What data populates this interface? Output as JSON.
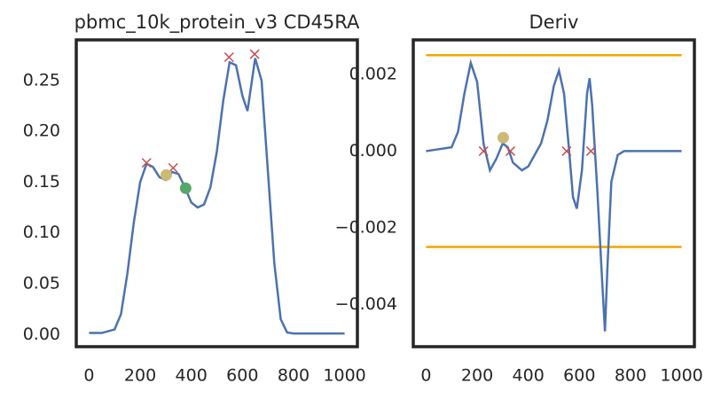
{
  "chart_data": [
    {
      "type": "line",
      "title": "pbmc_10k_protein_v3 CD45RA",
      "xlim": [
        -50,
        1050
      ],
      "ylim": [
        -0.012,
        0.29
      ],
      "xticks": [
        0,
        200,
        400,
        600,
        800,
        1000
      ],
      "yticks": [
        {
          "value": 0,
          "label": "0.00"
        },
        {
          "value": 0.05,
          "label": "0.05"
        },
        {
          "value": 0.1,
          "label": "0.10"
        },
        {
          "value": 0.15,
          "label": "0.15"
        },
        {
          "value": 0.2,
          "label": "0.20"
        },
        {
          "value": 0.25,
          "label": "0.25"
        }
      ],
      "series": [
        {
          "color": "#4c72b0",
          "marker": "line",
          "x": [
            0,
            50,
            100,
            125,
            150,
            175,
            200,
            225,
            250,
            275,
            300,
            325,
            350,
            375,
            400,
            425,
            450,
            475,
            500,
            525,
            550,
            575,
            600,
            620,
            650,
            675,
            700,
            725,
            750,
            775,
            800,
            900,
            1000
          ],
          "values": [
            0.0015,
            0.0015,
            0.005,
            0.02,
            0.06,
            0.11,
            0.15,
            0.168,
            0.165,
            0.155,
            0.152,
            0.16,
            0.158,
            0.145,
            0.13,
            0.125,
            0.128,
            0.145,
            0.18,
            0.23,
            0.268,
            0.265,
            0.235,
            0.22,
            0.272,
            0.25,
            0.16,
            0.07,
            0.015,
            0.002,
            0.001,
            0.001,
            0.001
          ]
        },
        {
          "color": "#c44e52",
          "marker": "x",
          "x": [
            225,
            329,
            548,
            648
          ],
          "values": [
            0.169,
            0.164,
            0.273,
            0.276
          ]
        },
        {
          "color": "#ccb974",
          "marker": "dot",
          "x": [
            302
          ],
          "values": [
            0.157
          ]
        },
        {
          "color": "#55a868",
          "marker": "dot",
          "x": [
            378
          ],
          "values": [
            0.144
          ]
        }
      ]
    },
    {
      "type": "line",
      "title": "Deriv",
      "xlim": [
        -50,
        1050
      ],
      "ylim": [
        -0.0051,
        0.0029
      ],
      "xticks": [
        0,
        200,
        400,
        600,
        800,
        1000
      ],
      "yticks": [
        {
          "value": -0.004,
          "label": "−0.004"
        },
        {
          "value": -0.002,
          "label": "−0.002"
        },
        {
          "value": 0,
          "label": "0.000"
        },
        {
          "value": 0.002,
          "label": "0.002"
        }
      ],
      "hlines": {
        "color": "#f5a300",
        "values": [
          0.0025,
          -0.0025
        ]
      },
      "series": [
        {
          "color": "#4c72b0",
          "marker": "line",
          "x": [
            0,
            100,
            125,
            150,
            175,
            200,
            225,
            250,
            275,
            300,
            320,
            340,
            375,
            400,
            450,
            475,
            500,
            520,
            540,
            560,
            575,
            590,
            610,
            630,
            640,
            650,
            670,
            690,
            700,
            710,
            725,
            750,
            775,
            1000
          ],
          "values": [
            0,
            0.0001,
            0.0005,
            0.0015,
            0.0023,
            0.0018,
            0.0002,
            -0.0005,
            -0.0002,
            0.0002,
            0.0001,
            -0.0003,
            -0.0005,
            -0.0004,
            0.0002,
            0.0008,
            0.0017,
            0.0021,
            0.0015,
            0,
            -0.0012,
            -0.0015,
            -0.0005,
            0.0015,
            0.0019,
            0.0012,
            -0.001,
            -0.0035,
            -0.0047,
            -0.003,
            -0.0008,
            -0.0001,
            0,
            0
          ]
        },
        {
          "color": "#c44e52",
          "marker": "x",
          "x": [
            225,
            330,
            550,
            645
          ],
          "values": [
            0,
            0,
            0,
            0
          ]
        },
        {
          "color": "#ccb974",
          "marker": "dot",
          "x": [
            302
          ],
          "values": [
            0.00035
          ]
        }
      ]
    }
  ]
}
